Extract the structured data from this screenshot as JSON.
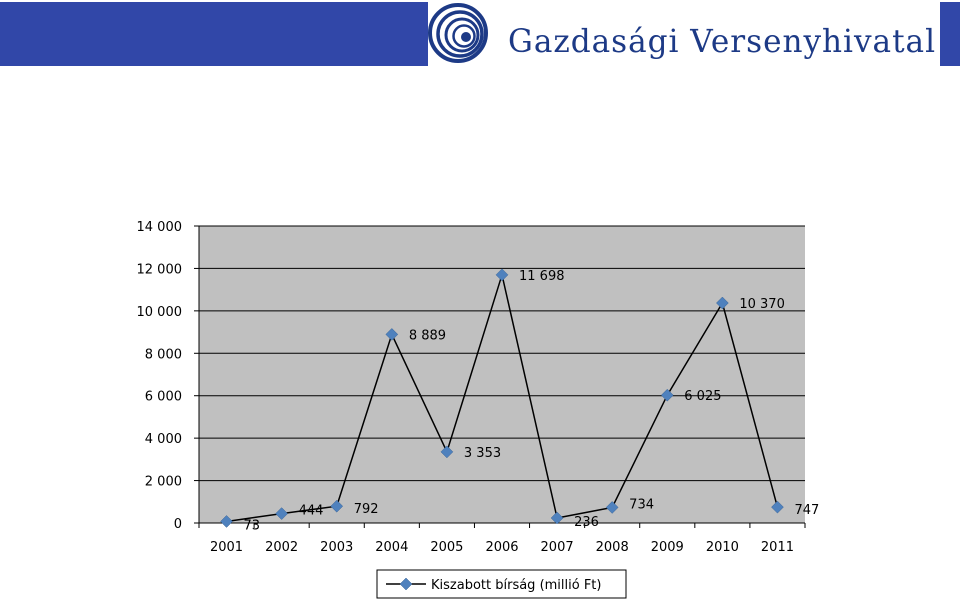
{
  "header": {
    "brand_name": "Gazdasági Versenyhivatal",
    "brand_color": "#3147a8",
    "logo_icon": "spiral-icon"
  },
  "chart_data": {
    "type": "line",
    "title": "",
    "xlabel": "",
    "ylabel": "",
    "categories": [
      "2001",
      "2002",
      "2003",
      "2004",
      "2005",
      "2006",
      "2007",
      "2008",
      "2009",
      "2010",
      "2011"
    ],
    "series": [
      {
        "name": "Kiszabott bírság (millió Ft)",
        "values": [
          73,
          444,
          792,
          8889,
          3353,
          11698,
          236,
          734,
          6025,
          10370,
          747
        ],
        "data_labels": [
          "73",
          "444",
          "792",
          "8 889",
          "3 353",
          "11 698",
          "236",
          "734",
          "6 025",
          "10 370",
          "747"
        ],
        "line_color": "#000000",
        "marker_color": "#4f81bd",
        "marker": "diamond"
      }
    ],
    "ylim": [
      0,
      14000
    ],
    "yticks": [
      0,
      2000,
      4000,
      6000,
      8000,
      10000,
      12000,
      14000
    ],
    "ytick_labels": [
      "0",
      "2 000",
      "4 000",
      "6 000",
      "8 000",
      "10 000",
      "12 000",
      "14 000"
    ],
    "grid": true,
    "plot_background": "#c0c0c0",
    "legend_position": "bottom"
  }
}
